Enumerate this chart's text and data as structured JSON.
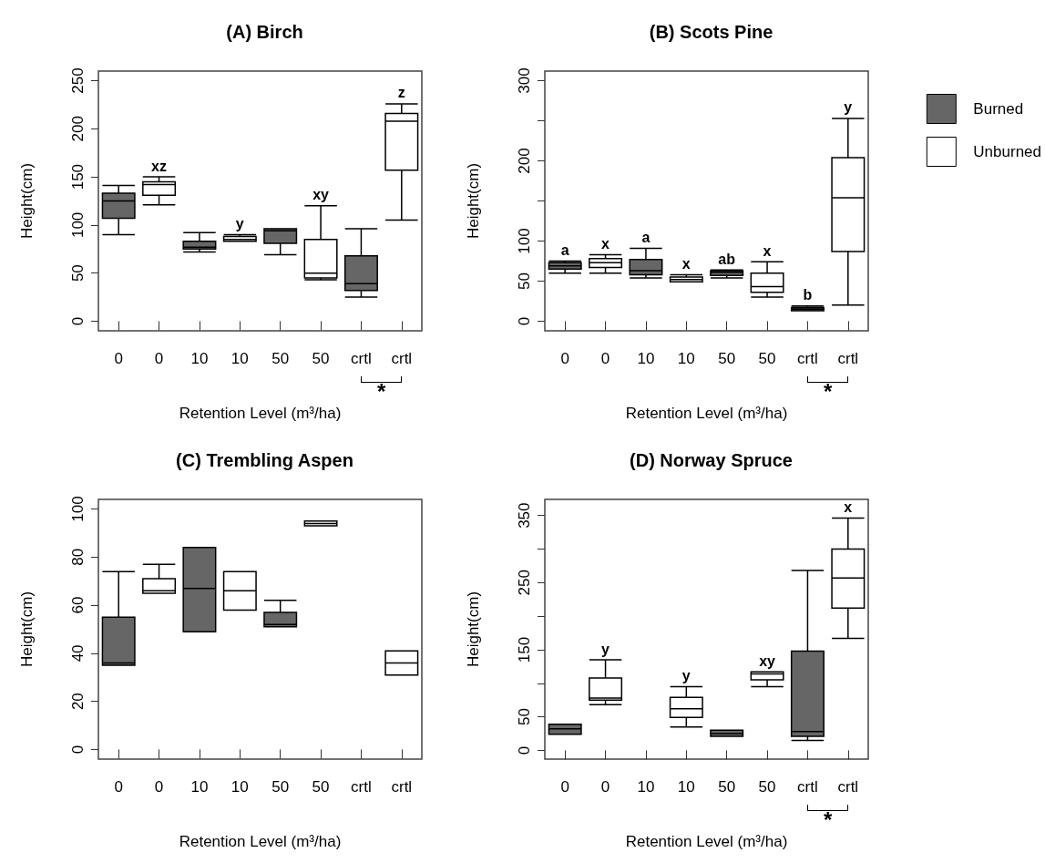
{
  "chart_data": [
    {
      "type": "box",
      "title": "(A) Birch",
      "xlabel": "Retention Level (m³/ha)",
      "ylabel": "Height(cm)",
      "categories": [
        "0",
        "0",
        "10",
        "10",
        "50",
        "50",
        "crtl",
        "crtl"
      ],
      "ylim": [
        -10,
        260
      ],
      "yticks": [
        0,
        50,
        100,
        150,
        200,
        250
      ],
      "grid": false,
      "annotations": [
        "*"
      ],
      "series": [
        {
          "color": "#666666",
          "boxes": [
            {
              "low": 90,
              "q1": 107,
              "median": 125,
              "q3": 133,
              "high": 141
            },
            null,
            {
              "low": 72,
              "q1": 75,
              "median": 77,
              "q3": 83,
              "high": 92
            },
            null,
            {
              "low": 69,
              "q1": 81,
              "median": 94,
              "q3": 96,
              "high": 96
            },
            null,
            {
              "low": 25,
              "q1": 32,
              "median": 39,
              "q3": 68,
              "high": 96
            },
            null
          ],
          "value_labels": [
            null,
            null,
            null,
            null,
            null,
            null,
            null,
            null
          ]
        },
        {
          "color": "#ffffff",
          "boxes": [
            null,
            {
              "low": 121,
              "q1": 131,
              "median": 142,
              "q3": 145,
              "high": 150
            },
            null,
            {
              "low": 83,
              "q1": 83,
              "median": 85,
              "q3": 88,
              "high": 90
            },
            null,
            {
              "low": 43,
              "q1": 45,
              "median": 50,
              "q3": 85,
              "high": 120
            },
            null,
            {
              "low": 105,
              "q1": 157,
              "median": 208,
              "q3": 216,
              "high": 226
            }
          ],
          "value_labels": [
            null,
            "xz",
            null,
            "y",
            null,
            "xy",
            null,
            "z"
          ]
        }
      ]
    },
    {
      "type": "box",
      "title": "(B) Scots Pine",
      "xlabel": "Retention Level (m³/ha)",
      "ylabel": "Height(cm)",
      "categories": [
        "0",
        "0",
        "10",
        "10",
        "50",
        "50",
        "crtl",
        "crtl"
      ],
      "ylim": [
        -12,
        312
      ],
      "yticks": [
        0,
        50,
        100,
        {
          "value": 150,
          "label": null
        },
        200,
        {
          "value": 250,
          "label": null
        },
        300
      ],
      "grid": false,
      "legend": "right",
      "annotations": [
        "*"
      ],
      "series": [
        {
          "name": "Burned",
          "color": "#666666",
          "boxes": [
            {
              "low": 60,
              "q1": 65,
              "median": 69,
              "q3": 73,
              "high": 75
            },
            null,
            {
              "low": 54,
              "q1": 58,
              "median": 63,
              "q3": 77,
              "high": 91
            },
            null,
            {
              "low": 54,
              "q1": 57,
              "median": 61,
              "q3": 63,
              "high": 64
            },
            null,
            {
              "low": 13,
              "q1": 13,
              "median": 15,
              "q3": 17,
              "high": 19
            },
            null
          ],
          "value_labels": [
            "a",
            null,
            "a",
            null,
            "ab",
            null,
            "b",
            null
          ]
        },
        {
          "name": "Unburned",
          "color": "#ffffff",
          "boxes": [
            null,
            {
              "low": 60,
              "q1": 67,
              "median": 73,
              "q3": 78,
              "high": 83
            },
            null,
            {
              "low": 49,
              "q1": 49,
              "median": 52,
              "q3": 55,
              "high": 58
            },
            null,
            {
              "low": 30,
              "q1": 36,
              "median": 43,
              "q3": 60,
              "high": 74
            },
            null,
            {
              "low": 20,
              "q1": 87,
              "median": 154,
              "q3": 204,
              "high": 253
            }
          ],
          "value_labels": [
            null,
            "x",
            null,
            "x",
            null,
            "x",
            null,
            "y"
          ]
        }
      ]
    },
    {
      "type": "box",
      "title": "(C) Trembling Aspen",
      "xlabel": "Retention Level (m³/ha)",
      "ylabel": "Height(cm)",
      "categories": [
        "0",
        "0",
        "10",
        "10",
        "50",
        "50",
        "crtl",
        "crtl"
      ],
      "ylim": [
        -4,
        104
      ],
      "yticks": [
        0,
        20,
        40,
        60,
        80,
        100
      ],
      "grid": false,
      "series": [
        {
          "color": "#666666",
          "boxes": [
            {
              "low": 35,
              "q1": 35,
              "median": 36,
              "q3": 55,
              "high": 74
            },
            null,
            {
              "low": 49,
              "q1": 49,
              "median": 67,
              "q3": 84,
              "high": 84
            },
            null,
            {
              "low": 51,
              "q1": 51,
              "median": 52,
              "q3": 57,
              "high": 62
            },
            null,
            null,
            null
          ]
        },
        {
          "color": "#ffffff",
          "boxes": [
            null,
            {
              "low": 65,
              "q1": 65,
              "median": 66,
              "q3": 71,
              "high": 77
            },
            null,
            {
              "low": 58,
              "q1": 58,
              "median": 66,
              "q3": 74,
              "high": 74
            },
            null,
            {
              "low": 93,
              "q1": 93,
              "median": 94,
              "q3": 95,
              "high": 95
            },
            null,
            {
              "low": 31,
              "q1": 31,
              "median": 36,
              "q3": 41,
              "high": 41
            }
          ]
        }
      ]
    },
    {
      "type": "box",
      "title": "(D) Norway Spruce",
      "xlabel": "Retention Level (m³/ha)",
      "ylabel": "Height(cm)",
      "categories": [
        "0",
        "0",
        "10",
        "10",
        "50",
        "50",
        "crtl",
        "crtl"
      ],
      "ylim": [
        -13,
        374
      ],
      "yticks": [
        0,
        50,
        {
          "value": 100,
          "label": null
        },
        150,
        {
          "value": 200,
          "label": null
        },
        250,
        {
          "value": 300,
          "label": null
        },
        350
      ],
      "grid": false,
      "annotations": [
        "*"
      ],
      "series": [
        {
          "color": "#666666",
          "boxes": [
            {
              "low": 24,
              "q1": 24,
              "median": 32,
              "q3": 39,
              "high": 39
            },
            null,
            null,
            null,
            {
              "low": 21,
              "q1": 21,
              "median": 25,
              "q3": 30,
              "high": 30
            },
            null,
            {
              "low": 15,
              "q1": 21,
              "median": 28,
              "q3": 148,
              "high": 268
            },
            null
          ],
          "value_labels": [
            null,
            null,
            null,
            null,
            null,
            null,
            null,
            null
          ]
        },
        {
          "color": "#ffffff",
          "boxes": [
            null,
            {
              "low": 68,
              "q1": 75,
              "median": 78,
              "q3": 108,
              "high": 135
            },
            null,
            {
              "low": 35,
              "q1": 49,
              "median": 62,
              "q3": 79,
              "high": 95
            },
            null,
            {
              "low": 95,
              "q1": 105,
              "median": 114,
              "q3": 117,
              "high": 117
            },
            null,
            {
              "low": 167,
              "q1": 212,
              "median": 257,
              "q3": 300,
              "high": 346
            }
          ],
          "value_labels": [
            null,
            "y",
            null,
            "y",
            null,
            "xy",
            null,
            "x"
          ]
        }
      ]
    }
  ]
}
